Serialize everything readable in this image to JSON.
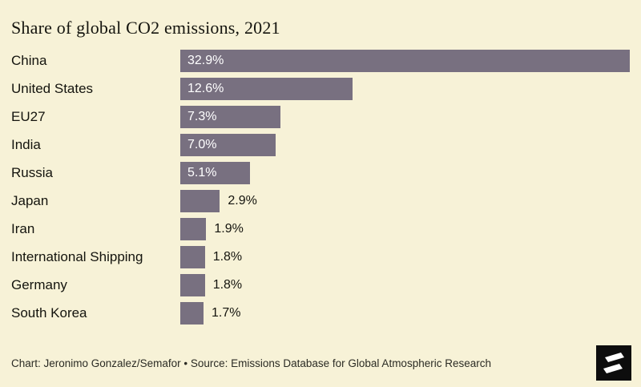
{
  "title": "Share of global CO2 emissions, 2021",
  "footer": {
    "credit": "Chart: Jeronimo Gonzalez/Semafor • Source: Emissions Database for Global Atmospheric Research"
  },
  "colors": {
    "background": "#f7f2d7",
    "bar": "#787080",
    "value_inside": "#ffffff",
    "text": "#14140e",
    "credit_text": "#2b2b24",
    "logo_background": "#0d0d0d",
    "logo_glyph": "#ffffff"
  },
  "chart_data": {
    "type": "bar",
    "orientation": "horizontal",
    "title": "Share of global CO2 emissions, 2021",
    "categories": [
      "China",
      "United States",
      "EU27",
      "India",
      "Russia",
      "Japan",
      "Iran",
      "International Shipping",
      "Germany",
      "South Korea"
    ],
    "values": [
      32.9,
      12.6,
      7.3,
      7.0,
      5.1,
      2.9,
      1.9,
      1.8,
      1.8,
      1.7
    ],
    "value_labels": [
      "32.9%",
      "12.6%",
      "7.3%",
      "7.0%",
      "5.1%",
      "2.9%",
      "1.9%",
      "1.8%",
      "1.8%",
      "1.7%"
    ],
    "xlim": [
      0,
      32.9
    ],
    "unit": "%",
    "grid": false,
    "legend": false,
    "value_label_position": "inside-left for large bars, outside-right for small bars"
  }
}
